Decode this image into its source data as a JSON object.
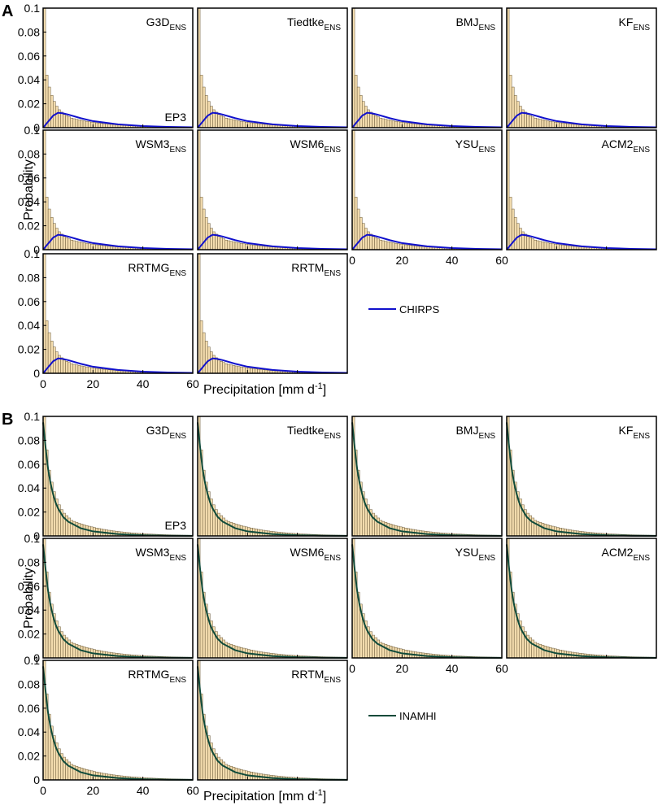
{
  "chart_data": {
    "type": "bar",
    "description_type": "histogram-with-line-overlay",
    "ylabel": "Probability",
    "xlabel": "Precipitation [mm d",
    "xlabel_sup": "-1",
    "xlabel_close": "]",
    "xlim": [
      0,
      60
    ],
    "ylim": [
      0,
      0.1
    ],
    "xticks": [
      0,
      20,
      40,
      60
    ],
    "xtick_labels": [
      "0",
      "20",
      "40",
      "60"
    ],
    "yticks": [
      0,
      0.02,
      0.04,
      0.06,
      0.08,
      0.1
    ],
    "ytick_labels": [
      "0",
      "0.02",
      "0.04",
      "0.06",
      "0.08",
      "0.1"
    ],
    "bin_width_mm": 1,
    "panels_models": [
      {
        "base": "G3D",
        "sub": "ENS"
      },
      {
        "base": "Tiedtke",
        "sub": "ENS"
      },
      {
        "base": "BMJ",
        "sub": "ENS"
      },
      {
        "base": "KF",
        "sub": "ENS"
      },
      {
        "base": "WSM3",
        "sub": "ENS"
      },
      {
        "base": "WSM6",
        "sub": "ENS"
      },
      {
        "base": "YSU",
        "sub": "ENS"
      },
      {
        "base": "ACM2",
        "sub": "ENS"
      },
      {
        "base": "RRTMG",
        "sub": "ENS"
      },
      {
        "base": "RRTM",
        "sub": "ENS"
      }
    ],
    "region_label": "EP3",
    "sections": [
      {
        "label": "A",
        "reference_name": "CHIRPS",
        "reference_color": "#1111cc",
        "histogram_first_bins": [
          0.1,
          0.044,
          0.034,
          0.027,
          0.022,
          0.018,
          0.015,
          0.013,
          0.011,
          0.01,
          0.009,
          0.008
        ],
        "reference_curve": {
          "x": [
            0,
            2,
            4,
            6,
            8,
            10,
            15,
            20,
            30,
            40,
            50,
            60
          ],
          "y": [
            0.0,
            0.005,
            0.01,
            0.0125,
            0.012,
            0.011,
            0.008,
            0.0055,
            0.0028,
            0.0014,
            0.0007,
            0.0003
          ]
        }
      },
      {
        "label": "B",
        "reference_name": "INAMHI",
        "reference_color": "#0f4a3a",
        "histogram_first_bins": [
          0.1,
          0.072,
          0.055,
          0.045,
          0.037,
          0.031,
          0.026,
          0.022,
          0.019,
          0.017,
          0.015,
          0.013
        ],
        "reference_curve": {
          "x": [
            0,
            1,
            2,
            3,
            4,
            5,
            6,
            8,
            10,
            15,
            20,
            30,
            40,
            50,
            60
          ],
          "y": [
            0.095,
            0.074,
            0.056,
            0.044,
            0.035,
            0.028,
            0.023,
            0.016,
            0.012,
            0.0065,
            0.0038,
            0.0015,
            0.0006,
            0.0002,
            0.0001
          ]
        }
      }
    ]
  },
  "colors": {
    "bar_fill": "#f3dcae",
    "bar_stroke": "#6b5a3a",
    "axes": "#000000"
  }
}
